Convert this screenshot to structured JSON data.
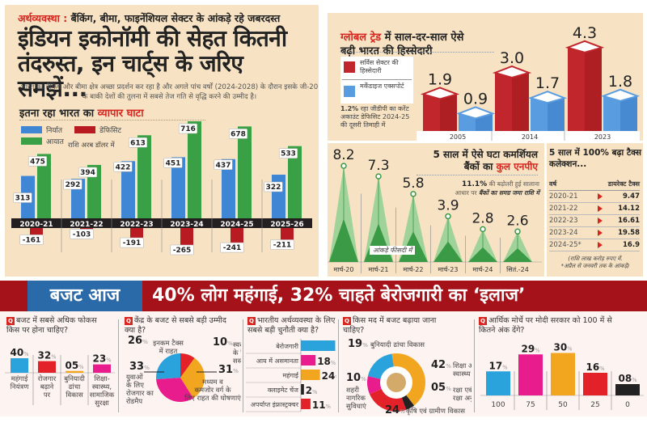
{
  "left_panel": {
    "kicker_label": "अर्थव्यवस्था :",
    "kicker_text": "बैंकिंग, बीमा, फाइनेंशियल सेक्टर के आंकड़े रहे जबरदस्त",
    "headline": "इंडियन इकोनॉमी की सेहत कितनी तंदरुस्त, इन चार्ट्स के जरिए समझें...",
    "intro": "भारत का बैंकिंग और बीमा क्षेत्र अच्छा प्रदर्शन कर रहा है और अगले पांच वर्षों (2024-2028) के दौरान इसके जी-20 के बाकी देशों की तुलना में सबसे तेज गति से वृद्धि करने की उम्मीद है।",
    "chart_title_a": "इतना रहा भारत का",
    "chart_title_b": "व्यापार घाटा",
    "unit_note": "राशि अरब डॉलर में"
  },
  "right_panel": {
    "share_title_a": "ग्लोबल ट्रेड",
    "share_title_b": "में साल-दर-साल ऐसे",
    "share_title_c": "बढ़ी भारत की हिस्सेदारी",
    "cad_bold": "1.2%",
    "cad_text": "रहा जीडीपी का करेंट अकाउंट डेफिसिट 2024-25 की दूसरी तिमाही में",
    "npa_title_a": "5 साल में ऐसे घटा कमर्शियल",
    "npa_title_b": "बैंकों का",
    "npa_title_c": "कुल एनपीए",
    "npa_note_bold": "11.1%",
    "npa_note_text": "की बढ़ोतरी हुई सालाना आधार पर",
    "npa_note_italic": "बैंकों का समग्र जमा राशि में",
    "npa_unit": "आंकड़े फीसदी में",
    "tax_title": "5 साल में 100% बढ़ा टैक्स कलेक्शन...",
    "tax_col_year": "वर्ष",
    "tax_col_value": "डायरेक्ट टैक्स",
    "tax_rows": [
      {
        "year": "2020-21",
        "value": "9.47"
      },
      {
        "year": "2021-22",
        "value": "14.12"
      },
      {
        "year": "2022-23",
        "value": "16.61"
      },
      {
        "year": "2023-24",
        "value": "19.58"
      },
      {
        "year": "2024-25*",
        "value": "16.9"
      }
    ],
    "tax_footnote_1": "(राशि लाख करोड़ रुपए में.",
    "tax_footnote_2": "*अप्रैल से जनवरी तक के आंकड़े)"
  },
  "banner": {
    "tag": "बजट आज",
    "headline": "40% लोग महंगाई, 32% चाहते बेरोजगारी का ‘इलाज’"
  },
  "survey": {
    "q_icon": "Q",
    "q1": "बजट में सबसे अधिक फोकस किस पर होना चाहिए?",
    "q2": "केंद्र के बजट से सबसे बड़ी उम्मीद क्या है?",
    "q3": "भारतीय अर्थव्यवस्था के लिए सबसे बड़ी चुनौती क्या है?",
    "q4": "किस मद में बजट बढ़ाया जाना चाहिए?",
    "q5": "आर्थिक मोर्चे पर मोदी सरकार को 100 में से कितने अंक देंगे?",
    "pct_sign": "%"
  },
  "colors": {
    "export_blue": "#3f86d4",
    "import_green": "#3aa046",
    "deficit_red": "#b81c22",
    "banner_red": "#a5121a",
    "banner_blue": "#2a6aa8",
    "cream": "#f7e3c4",
    "cyan": "#2aa3dd",
    "magenta": "#e81c8c",
    "orange": "#f2a51f",
    "red": "#e32129",
    "black": "#222222"
  },
  "chart_data": [
    {
      "id": "trade-deficit",
      "type": "bar",
      "title": "इतना रहा भारत का व्यापार घाटा",
      "ylabel": "राशि अरब डॉलर में",
      "categories": [
        "2020-21",
        "2021-22",
        "2022-23",
        "2023-24",
        "2024-25",
        "2025-26"
      ],
      "series": [
        {
          "name": "निर्यात",
          "color": "#3f86d4",
          "values": [
            313,
            292,
            422,
            451,
            437,
            322
          ]
        },
        {
          "name": "आयात",
          "color": "#3aa046",
          "values": [
            475,
            394,
            613,
            716,
            678,
            533
          ]
        },
        {
          "name": "डेफिसिट",
          "color": "#b81c22",
          "values": [
            -161,
            -103,
            -191,
            -265,
            -241,
            -211
          ]
        }
      ],
      "legend": "top-left"
    },
    {
      "id": "global-trade-share",
      "type": "bar",
      "title": "ग्लोबल ट्रेड में साल-दर-साल ऐसे बढ़ी भारत की हिस्सेदारी",
      "categories": [
        "2005",
        "2014",
        "2023"
      ],
      "series": [
        {
          "name": "सर्विस सेक्टर की हिस्सेदारी",
          "color": "#c0262b",
          "values": [
            1.9,
            3.0,
            4.3
          ]
        },
        {
          "name": "मर्केंडाइज एक्सपोर्ट",
          "color": "#5a9ce0",
          "values": [
            0.9,
            1.7,
            1.8
          ]
        }
      ],
      "value_labels": [
        "1.9",
        "0.9",
        "3.0",
        "1.7",
        "4.3",
        "1.8"
      ],
      "legend": "left"
    },
    {
      "id": "npa",
      "type": "area",
      "title": "5 साल में ऐसे घटा कमर्शियल बैंकों का कुल एनपीए",
      "ylabel": "आंकड़े फीसदी में",
      "categories": [
        "मार्च-20",
        "मार्च-21",
        "मार्च-22",
        "मार्च-23",
        "मार्च-24",
        "सितं.-24"
      ],
      "values": [
        8.2,
        7.3,
        5.8,
        3.9,
        2.8,
        2.6
      ],
      "value_labels": [
        "8.2",
        "7.3",
        "5.8",
        "3.9",
        "2.8",
        "2.6"
      ]
    },
    {
      "id": "q1-focus",
      "type": "bar",
      "categories": [
        "महंगाई नियंत्रण",
        "रोजगार बढ़ाने पर",
        "बुनियादी ढांचा विकास",
        "शिक्षा-स्वास्थ्य, सामाजिक सुरक्षा"
      ],
      "values": [
        40,
        32,
        5,
        23
      ],
      "value_labels": [
        "40",
        "32",
        "05",
        "23"
      ],
      "colors": [
        "#2aa3dd",
        "#e32129",
        "#f2a51f",
        "#e81c8c"
      ]
    },
    {
      "id": "q2-expectation",
      "type": "pie",
      "labels": [
        "स्वरोजगार के लिए सस्ता कर्ज",
        "मध्यम व कमजोर वर्ग के लिए राहत की घोषणाएं",
        "युवाओं के लिए रोजगार का रोडमैप",
        "इनकम टैक्स में राहत"
      ],
      "values": [
        10,
        31,
        33,
        26
      ],
      "value_labels": [
        "10",
        "31",
        "33",
        "26"
      ],
      "colors": [
        "#e32129",
        "#f2a51f",
        "#e81c8c",
        "#2aa3dd"
      ]
    },
    {
      "id": "q3-challenge",
      "type": "bar",
      "orientation": "horizontal",
      "categories": [
        "बेरोजगारी",
        "आय में असमानता",
        "महंगाई",
        "क्लाइमेट चेंज",
        "अपर्याप्त इंफ्रास्ट्रक्चर"
      ],
      "values": [
        45,
        18,
        24,
        2,
        11
      ],
      "value_labels": [
        "45",
        "18",
        "24",
        "2",
        "11"
      ],
      "colors": [
        "#2aa3dd",
        "#e81c8c",
        "#f2a51f",
        "#222222",
        "#e32129"
      ]
    },
    {
      "id": "q4-allocation",
      "type": "pie",
      "donut": true,
      "labels": [
        "शिक्षा और स्वास्थ्य",
        "रक्षा एवं रक्षा अनुसंधान",
        "कृषि एवं ग्रामीण विकास",
        "शहरी नागरिक सुविधाएं",
        "बुनियादी ढांचा विकास"
      ],
      "values": [
        42,
        5,
        24,
        10,
        19
      ],
      "value_labels": [
        "42",
        "05",
        "24",
        "10",
        "19"
      ],
      "colors": [
        "#f2a51f",
        "#222222",
        "#e32129",
        "#e81c8c",
        "#2aa3dd"
      ]
    },
    {
      "id": "q5-rating",
      "type": "bar",
      "categories": [
        "100",
        "75",
        "50",
        "25",
        "0"
      ],
      "values": [
        17,
        29,
        30,
        16,
        8
      ],
      "value_labels": [
        "17",
        "29",
        "30",
        "16",
        "08"
      ],
      "colors": [
        "#2aa3dd",
        "#e81c8c",
        "#f2a51f",
        "#e32129",
        "#222222"
      ]
    }
  ]
}
